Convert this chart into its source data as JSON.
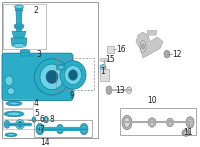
{
  "background_color": "#ffffff",
  "mc": "#2badc8",
  "dk": "#1a7a95",
  "lt": "#6dd4e8",
  "lc": "#222222",
  "gray": "#aaaaaa",
  "dgray": "#777777",
  "lgray": "#dddddd"
}
